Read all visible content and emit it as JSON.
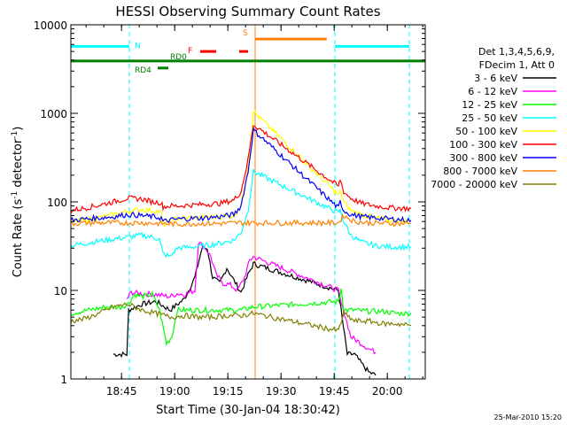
{
  "chart_data": {
    "type": "line",
    "title": "HESSI Observing Summary Count Rates",
    "xlabel": "Start Time (30-Jan-04 18:30:42)",
    "ylabel_main": "Count Rate (s",
    "ylabel_sup1": "-1",
    "ylabel_mid": " detector",
    "ylabel_sup2": "-1",
    "ylabel_end": ")",
    "footer_timestamp": "25-Mar-2010 15:20",
    "x_start_min": 0,
    "x_range_min": [
      0,
      100
    ],
    "y_scale": "log",
    "ylim": [
      1,
      10000
    ],
    "x_ticks": [
      {
        "min": 14.3,
        "label": "18:45"
      },
      {
        "min": 29.3,
        "label": "19:00"
      },
      {
        "min": 44.3,
        "label": "19:15"
      },
      {
        "min": 59.3,
        "label": "19:30"
      },
      {
        "min": 74.3,
        "label": "19:45"
      },
      {
        "min": 89.3,
        "label": "20:00"
      }
    ],
    "y_ticks": [
      {
        "value": 1,
        "label": "1"
      },
      {
        "value": 10,
        "label": "10"
      },
      {
        "value": 100,
        "label": "100"
      },
      {
        "value": 1000,
        "label": "1000"
      },
      {
        "value": 10000,
        "label": "10000"
      }
    ],
    "legend": {
      "header_line1": "Det 1,3,4,5,6,9,",
      "header_line2": "FDecim 1, Att 0",
      "placement": "right"
    },
    "flags": [
      {
        "label": "N",
        "color": "#00ffff",
        "y": 5700,
        "segments": [
          [
            0,
            16.5
          ],
          [
            74.5,
            95.5
          ]
        ]
      },
      {
        "label": "S",
        "color": "#ff8000",
        "y": 6900,
        "segments": [
          [
            52.0,
            72.2
          ]
        ]
      },
      {
        "label": "F",
        "color": "#ff0000",
        "y": 5000,
        "segments": [
          [
            36.5,
            41
          ],
          [
            47.5,
            50
          ]
        ]
      },
      {
        "label": "RD0",
        "color": "#007f00",
        "y": 3900,
        "segments": [
          [
            0,
            100
          ]
        ]
      },
      {
        "label": "RD4",
        "color": "#007f00",
        "y": 3250,
        "segments": [
          [
            24.5,
            27.5
          ]
        ]
      }
    ],
    "vlines": [
      {
        "min": 16.5,
        "color": "#00ffff",
        "style": "dashed"
      },
      {
        "min": 52.0,
        "color": "#ff8000",
        "style": "solid"
      },
      {
        "min": 74.5,
        "color": "#00ffff",
        "style": "dashed"
      },
      {
        "min": 95.5,
        "color": "#00ffff",
        "style": "dashed"
      }
    ],
    "series": [
      {
        "name": "3 - 6 keV",
        "color": "#000000",
        "x": [
          12,
          15.8,
          16.3,
          20,
          24,
          28,
          32,
          35,
          37,
          38.5,
          40,
          42,
          44,
          46,
          48,
          50,
          51.5,
          75.5,
          76.5,
          78,
          80,
          82,
          84,
          86
        ],
        "y": [
          1.9,
          1.9,
          6,
          7,
          7.5,
          6,
          8,
          14,
          30,
          30,
          14,
          12,
          18,
          13,
          9.5,
          15,
          20,
          10,
          5,
          1.9,
          1.9,
          1.5,
          1.2,
          1.1
        ]
      },
      {
        "name": "6 - 12 keV",
        "color": "#ff00ff",
        "x": [
          15.8,
          17,
          20,
          24,
          28,
          30,
          32,
          35,
          36,
          38,
          39.5,
          41,
          43,
          45,
          47,
          49,
          50.5,
          51.5,
          75.5,
          76.3,
          77.5,
          79,
          82,
          84,
          86
        ],
        "y": [
          8,
          9.5,
          9.2,
          9,
          8.5,
          9.2,
          9,
          10,
          35,
          30,
          24,
          15,
          12,
          11.5,
          10,
          14,
          22,
          24,
          10,
          7,
          5,
          3,
          2.5,
          2.2,
          2
        ]
      },
      {
        "name": "12 - 25 keV",
        "color": "#00ff00",
        "x": [
          0,
          5,
          10,
          14,
          16,
          18,
          20,
          23,
          25,
          27,
          28.5,
          30,
          33,
          36,
          40,
          44,
          48,
          51.5,
          75.5,
          76.3,
          77,
          80,
          84,
          88,
          92,
          96
        ],
        "y": [
          5.5,
          6,
          6.5,
          6.5,
          7,
          9,
          8.5,
          9,
          6,
          2.5,
          3,
          6,
          6,
          6,
          6,
          6,
          6,
          6.5,
          7.5,
          10.5,
          6,
          6,
          5.8,
          5.8,
          5.5,
          5.5
        ]
      },
      {
        "name": "25 - 50 keV",
        "color": "#00ffff",
        "x": [
          0,
          4,
          8,
          12,
          16,
          20,
          23,
          25,
          26,
          28,
          30,
          34,
          38,
          42,
          46,
          48,
          50,
          51.5,
          75.5,
          76,
          77,
          79,
          82,
          86,
          90,
          96
        ],
        "y": [
          32,
          34,
          36,
          38,
          40,
          42,
          40,
          38,
          26,
          24,
          30,
          31,
          32,
          34,
          37,
          45,
          80,
          220,
          75,
          80,
          60,
          42,
          35,
          32,
          31,
          31
        ]
      },
      {
        "name": "50 - 100 keV",
        "color": "#ffff00",
        "x": [
          0,
          4,
          8,
          12,
          16,
          20,
          23,
          25.5,
          26,
          28,
          30,
          34,
          38,
          42,
          46,
          48,
          50,
          51.5,
          75.5,
          76,
          77,
          79,
          82,
          86,
          90,
          96
        ],
        "y": [
          60,
          62,
          66,
          72,
          78,
          82,
          80,
          76,
          55,
          60,
          65,
          66,
          67,
          68,
          70,
          90,
          250,
          1050,
          120,
          130,
          100,
          80,
          72,
          66,
          62,
          60
        ]
      },
      {
        "name": "100 - 300 keV",
        "color": "#ff0000",
        "x": [
          0,
          4,
          8,
          12,
          16,
          20,
          23,
          25.5,
          26,
          28,
          30,
          34,
          38,
          42,
          46,
          48,
          50,
          51.5,
          75.5,
          76,
          77,
          79,
          82,
          86,
          90,
          96
        ],
        "y": [
          80,
          85,
          92,
          100,
          110,
          108,
          100,
          98,
          88,
          90,
          90,
          92,
          94,
          96,
          105,
          130,
          300,
          750,
          150,
          180,
          130,
          110,
          96,
          90,
          86,
          84
        ]
      },
      {
        "name": "300 - 800 keV",
        "color": "#0000ff",
        "x": [
          0,
          4,
          8,
          12,
          16,
          20,
          23,
          25.5,
          26,
          28,
          30,
          34,
          38,
          42,
          46,
          48,
          50,
          51.5,
          75.5,
          76,
          77,
          79,
          82,
          86,
          90,
          96
        ],
        "y": [
          62,
          64,
          66,
          68,
          72,
          70,
          68,
          66,
          60,
          62,
          64,
          65,
          66,
          68,
          72,
          90,
          220,
          650,
          85,
          100,
          80,
          72,
          68,
          66,
          64,
          62
        ]
      },
      {
        "name": "800 - 7000 keV",
        "color": "#ff8000",
        "x": [
          0,
          6,
          12,
          16,
          20,
          25,
          30,
          36,
          42,
          48,
          51.5,
          75.5,
          77,
          80,
          84,
          90,
          96
        ],
        "y": [
          57,
          58,
          58,
          58,
          58,
          57,
          56,
          57,
          57,
          58,
          58,
          58,
          70,
          60,
          58,
          57,
          57
        ]
      },
      {
        "name": "7000 - 20000 keV",
        "color": "#808000",
        "x": [
          0,
          4,
          8,
          12,
          16,
          18,
          20,
          24,
          28,
          32,
          36,
          40,
          44,
          48,
          51.5,
          75.5,
          77,
          80,
          84,
          88,
          92,
          96
        ],
        "y": [
          4.5,
          4.8,
          5.5,
          6.5,
          7,
          6.5,
          6,
          5.5,
          5,
          5.2,
          5,
          5,
          5.2,
          5.2,
          5.5,
          3.5,
          5.5,
          4.5,
          4.5,
          4.2,
          4.2,
          4
        ]
      }
    ]
  }
}
